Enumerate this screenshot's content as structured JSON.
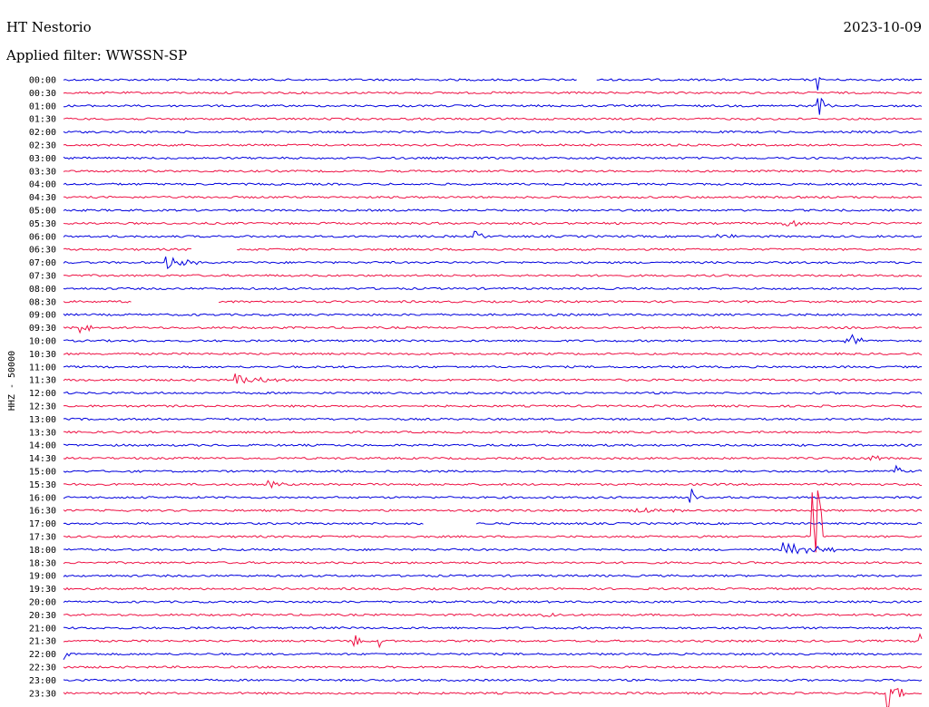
{
  "header": {
    "station": "HT Nestorio",
    "date": "2023-10-09",
    "filter_label": "Applied filter: WWSSN-SP"
  },
  "chart_data": {
    "type": "line",
    "title": "HT Nestorio",
    "channel_label": "HHZ - 50000",
    "row_labels": [
      "00:00",
      "00:30",
      "01:00",
      "01:30",
      "02:00",
      "02:30",
      "03:00",
      "03:30",
      "04:00",
      "04:30",
      "05:00",
      "05:30",
      "06:00",
      "06:30",
      "07:00",
      "07:30",
      "08:00",
      "08:30",
      "09:00",
      "09:30",
      "10:00",
      "10:30",
      "11:00",
      "11:30",
      "12:00",
      "12:30",
      "13:00",
      "13:30",
      "14:00",
      "14:30",
      "15:00",
      "15:30",
      "16:00",
      "16:30",
      "17:00",
      "17:30",
      "18:00",
      "18:30",
      "19:00",
      "19:30",
      "20:00",
      "20:30",
      "21:00",
      "21:30",
      "22:00",
      "22:30",
      "23:00",
      "23:30"
    ],
    "colors": {
      "even": "#0000dd",
      "odd": "#ee1144"
    },
    "gaps": [
      {
        "row": 0,
        "from": 0.6,
        "to": 0.62
      },
      {
        "row": 13,
        "from": 0.15,
        "to": 0.2
      },
      {
        "row": 17,
        "from": 0.08,
        "to": 0.18
      },
      {
        "row": 34,
        "from": 0.42,
        "to": 0.48
      }
    ],
    "events": [
      {
        "row": 2,
        "pos": 0.88,
        "amp": 1.0,
        "dur": 0.012,
        "tail": true
      },
      {
        "row": 0,
        "pos": 0.88,
        "amp": 1.0,
        "dur": 0.004
      },
      {
        "row": 11,
        "pos": 0.84,
        "amp": 0.25,
        "dur": 0.05
      },
      {
        "row": 12,
        "pos": 0.48,
        "amp": 0.4,
        "dur": 0.012
      },
      {
        "row": 12,
        "pos": 0.76,
        "amp": 0.15,
        "dur": 0.05
      },
      {
        "row": 14,
        "pos": 0.12,
        "amp": 0.45,
        "dur": 0.04
      },
      {
        "row": 19,
        "pos": 0.02,
        "amp": 0.4,
        "dur": 0.02
      },
      {
        "row": 20,
        "pos": 0.91,
        "amp": 0.9,
        "dur": 0.02
      },
      {
        "row": 23,
        "pos": 0.2,
        "amp": 0.45,
        "dur": 0.05
      },
      {
        "row": 30,
        "pos": 0.97,
        "amp": 0.45,
        "dur": 0.03
      },
      {
        "row": 29,
        "pos": 0.94,
        "amp": 0.2,
        "dur": 0.04
      },
      {
        "row": 31,
        "pos": 0.24,
        "amp": 0.4,
        "dur": 0.02
      },
      {
        "row": 32,
        "pos": 0.73,
        "amp": 0.9,
        "dur": 0.01
      },
      {
        "row": 33,
        "pos": 0.66,
        "amp": 0.2,
        "dur": 0.07
      },
      {
        "row": 36,
        "pos": 0.84,
        "amp": 0.6,
        "dur": 0.06
      },
      {
        "row": 35,
        "pos": 0.873,
        "amp": 9.0,
        "dur": 0.012
      },
      {
        "row": 41,
        "pos": 0.56,
        "amp": 0.35,
        "dur": 0.02
      },
      {
        "row": 43,
        "pos": 0.34,
        "amp": 0.9,
        "dur": 0.008
      },
      {
        "row": 43,
        "pos": 0.37,
        "amp": 0.5,
        "dur": 0.008
      },
      {
        "row": 44,
        "pos": 0.0,
        "amp": 0.6,
        "dur": 0.01
      },
      {
        "row": 43,
        "pos": 0.998,
        "amp": 2.5,
        "dur": 0.004
      },
      {
        "row": 47,
        "pos": 0.96,
        "amp": 1.2,
        "dur": 0.02
      }
    ]
  }
}
